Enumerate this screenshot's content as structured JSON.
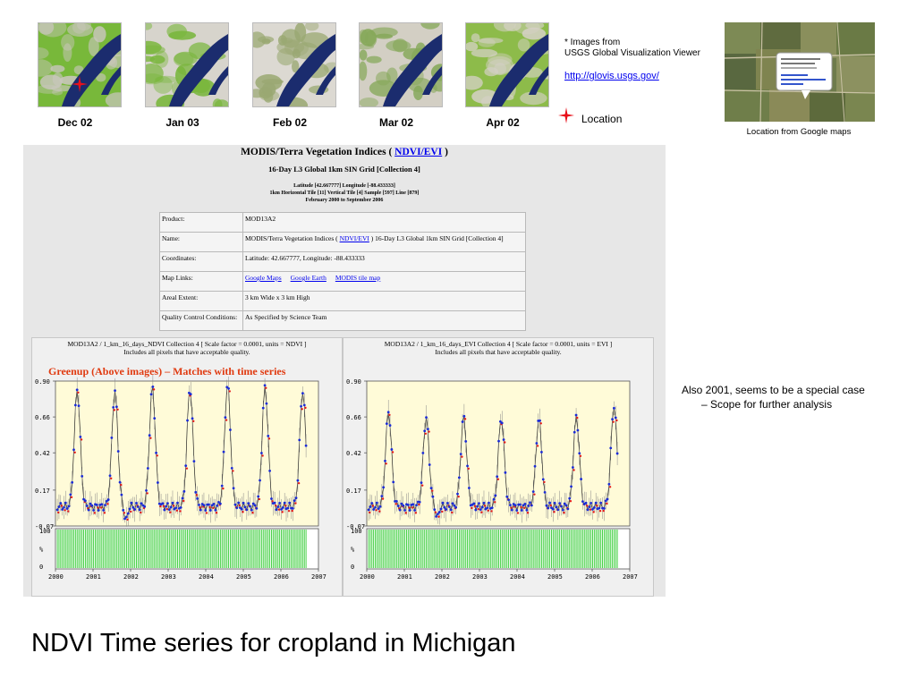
{
  "thumbnails": [
    {
      "label": "Dec 02",
      "x": 42
    },
    {
      "label": "Jan 03",
      "x": 162
    },
    {
      "label": "Feb 02",
      "x": 282
    },
    {
      "label": "Mar 02",
      "x": 401
    },
    {
      "label": "Apr 02",
      "x": 520
    }
  ],
  "source_note": {
    "line1": "* Images from",
    "line2": "USGS Global Visualization Viewer",
    "url": "http://glovis.usgs.gov/"
  },
  "legend": {
    "location_label": "Location",
    "marker_color": "#e8101a"
  },
  "google_maps_caption": "Location from Google maps",
  "modis_panel": {
    "title_prefix": "MODIS/Terra Vegetation Indices ( ",
    "title_link": "NDVI/EVI",
    "title_suffix": " )",
    "subtitle": "16-Day L3 Global 1km SIN Grid [Collection 4]",
    "coords_line": "Latitude [42.667777] Longitude [-88.433333]",
    "tile_line": "1km Horizontal Tile [11] Vertical Tile [4] Sample [597] Line [879]",
    "date_line": "February 2000 to September 2006",
    "info_rows": [
      {
        "key": "Product:",
        "value": "MOD13A2"
      },
      {
        "key": "Name:",
        "value_prefix": "MODIS/Terra Vegetation Indices ( ",
        "value_link": "NDVI/EVI",
        "value_suffix": " ) 16-Day L3 Global 1km SIN Grid [Collection 4]"
      },
      {
        "key": "Coordinates:",
        "value": "Latitude: 42.667777, Longitude: -88.433333"
      },
      {
        "key": "Map Links:",
        "links": [
          "Google Maps",
          "Google Earth",
          "MODIS tile map"
        ]
      },
      {
        "key": "Areal Extent:",
        "value": "3 km Wide x 3 km High"
      },
      {
        "key": "Quality Control Conditions:",
        "value": "As Specified by Science Team"
      }
    ]
  },
  "annotation_red": "Greenup (Above images) – Matches with time series",
  "side_note_line1": "Also 2001, seems to be a special case",
  "side_note_line2": "– Scope for further analysis",
  "slide_title": "NDVI Time series  for cropland in Michigan",
  "chart_data": [
    {
      "type": "line",
      "header1": "MOD13A2 / 1_km_16_days_NDVI Collection 4 [ Scale factor = 0.0001, units = NDVI ]",
      "header2": "Includes all pixels that have acceptable quality.",
      "y_ticks": [
        "0.90",
        "0.66",
        "0.42",
        "0.17",
        "-0.07"
      ],
      "ylim": [
        -0.07,
        0.9
      ],
      "x_ticks": [
        "2000",
        "2001",
        "2002",
        "2003",
        "2004",
        "2005",
        "2006",
        "2007"
      ],
      "xlim": [
        2000,
        2007
      ],
      "qa_ticks": [
        "100",
        "%",
        "0"
      ],
      "peaks": [
        0.85,
        0.84,
        0.86,
        0.86,
        0.88,
        0.86,
        0.84
      ],
      "troughs": [
        0.3,
        -0.05,
        0.22,
        0.24,
        0.23,
        0.2,
        0.06
      ],
      "data_end": 2006.7
    },
    {
      "type": "line",
      "header1": "MOD13A2 / 1_km_16_days_EVI Collection 4 [ Scale factor = 0.0001, units = EVI ]",
      "header2": "Includes all pixels that have acceptable quality.",
      "y_ticks": [
        "0.90",
        "0.66",
        "0.42",
        "0.17",
        "-0.07"
      ],
      "ylim": [
        -0.07,
        0.9
      ],
      "x_ticks": [
        "2000",
        "2001",
        "2002",
        "2003",
        "2004",
        "2005",
        "2006",
        "2007"
      ],
      "xlim": [
        2000,
        2007
      ],
      "qa_ticks": [
        "100",
        "%",
        "0"
      ],
      "peaks": [
        0.7,
        0.66,
        0.66,
        0.66,
        0.65,
        0.66,
        0.74
      ],
      "troughs": [
        0.22,
        -0.03,
        0.14,
        0.16,
        0.15,
        0.14,
        0.06
      ],
      "data_end": 2006.7
    }
  ],
  "colors": {
    "plot_bg": "#fffbd8",
    "qa_bars": "#33cc33",
    "series_blue": "#1a2bd6",
    "series_red": "#e51b1b",
    "panel_bg": "#e7e7e7",
    "annotation": "#e03a10"
  }
}
